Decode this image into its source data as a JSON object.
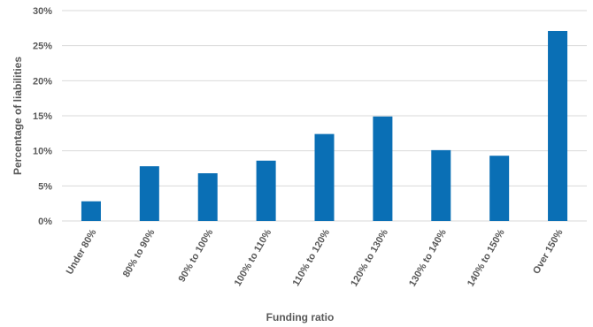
{
  "chart_data": {
    "type": "bar",
    "title": "",
    "xlabel": "Funding ratio",
    "ylabel": "Percentage of liabilities",
    "categories": [
      "Under 80%",
      "80% to 90%",
      "90% to 100%",
      "100% to 110%",
      "110% to 120%",
      "120% to 130%",
      "130% to 140%",
      "140% to 150%",
      "Over 150%"
    ],
    "values": [
      2.8,
      7.8,
      6.8,
      8.6,
      12.4,
      14.9,
      10.1,
      9.3,
      27.1
    ],
    "ylim": [
      0,
      30
    ],
    "yticks": [
      "0%",
      "5%",
      "10%",
      "15%",
      "20%",
      "25%",
      "30%"
    ],
    "grid": true,
    "bar_color": "#0A6FB5",
    "grid_color": "#D9D9D9"
  }
}
